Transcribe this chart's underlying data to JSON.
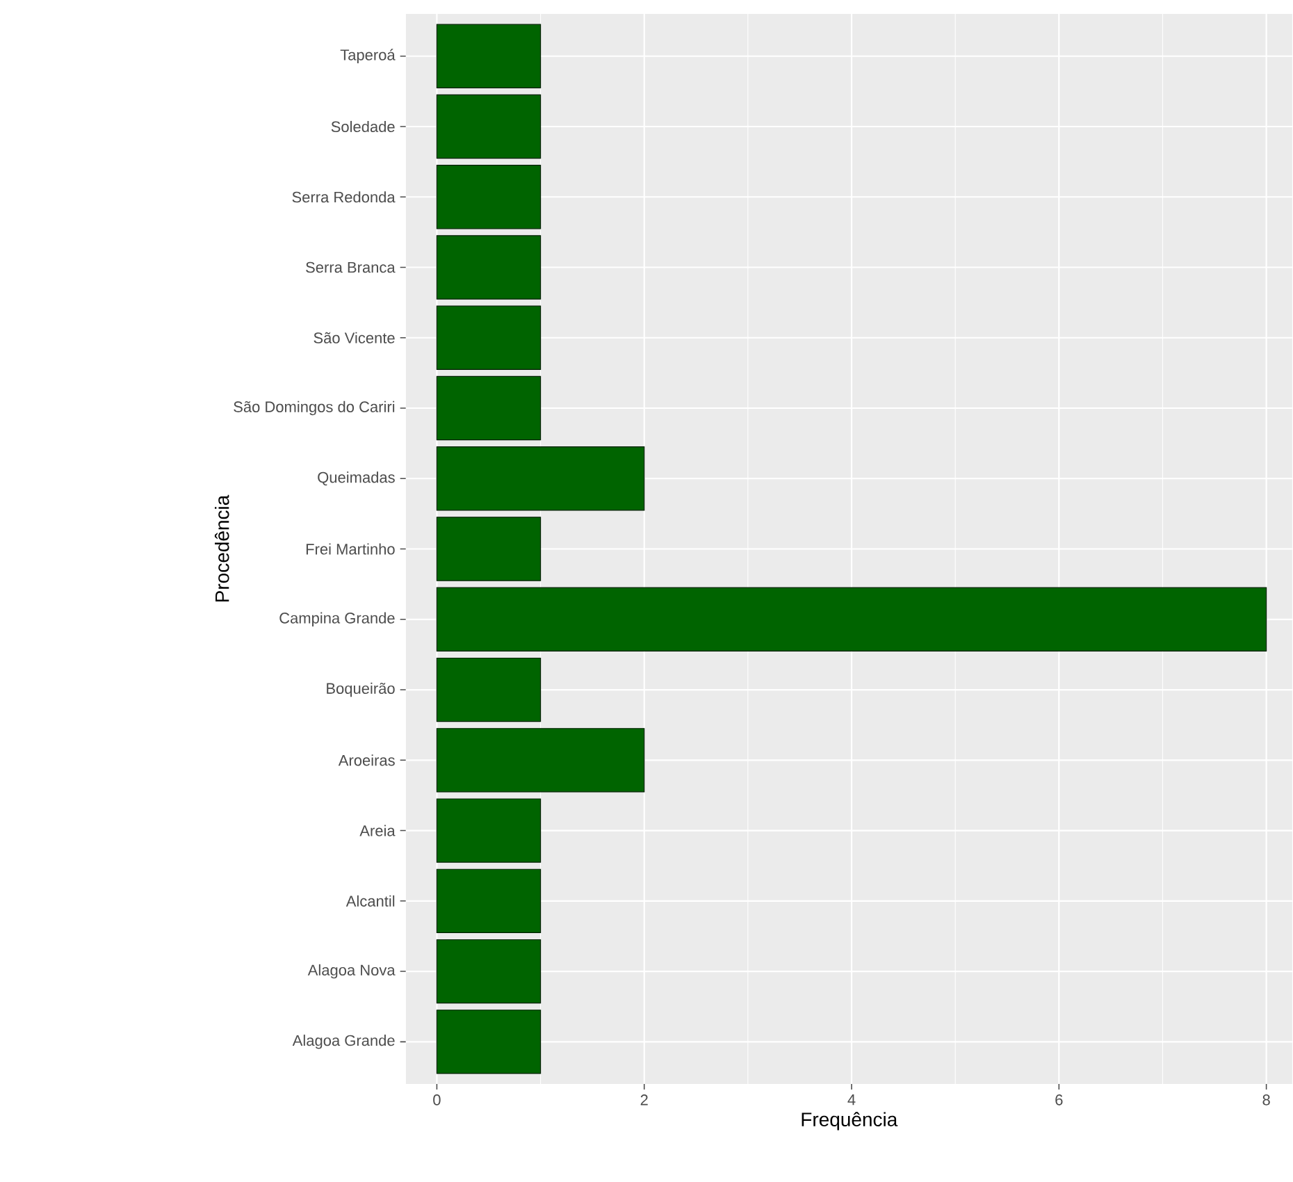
{
  "chart_data": {
    "type": "bar",
    "orientation": "horizontal",
    "xlabel": "Frequência",
    "ylabel": "Procedência",
    "categories": [
      "Taperoá",
      "Soledade",
      "Serra Redonda",
      "Serra Branca",
      "São Vicente",
      "São Domingos do Cariri",
      "Queimadas",
      "Frei Martinho",
      "Campina Grande",
      "Boqueirão",
      "Aroeiras",
      "Areia",
      "Alcantil",
      "Alagoa Nova",
      "Alagoa Grande"
    ],
    "values": [
      1,
      1,
      1,
      1,
      1,
      1,
      2,
      1,
      8,
      1,
      2,
      1,
      1,
      1,
      1
    ],
    "color": "#006400",
    "xlim": [
      -0.3,
      8.25
    ],
    "xticks": [
      0,
      2,
      4,
      6,
      8
    ],
    "grid": true
  }
}
